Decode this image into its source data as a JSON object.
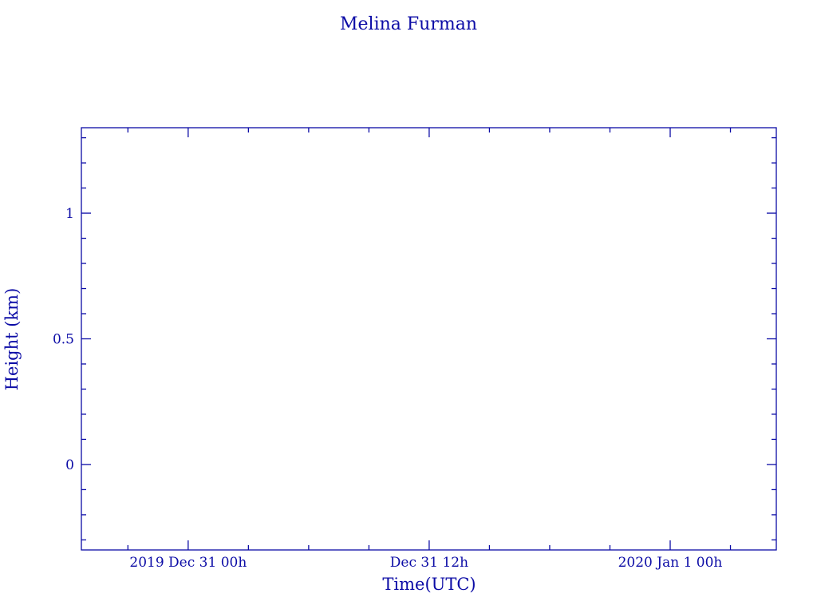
{
  "chart_data": {
    "type": "line",
    "title": "Melina Furman",
    "xlabel": "Time(UTC)",
    "ylabel": "Height (km)",
    "color": "#0c0ca6",
    "xlim": [
      "2019-12-30T18:41",
      "2020-01-01T05:17"
    ],
    "ylim": [
      -0.34,
      1.34
    ],
    "x_major_ticks": [
      {
        "time": "2019-12-31T00:00",
        "label": "2019 Dec 31  00h"
      },
      {
        "time": "2019-12-31T12:00",
        "label": "Dec 31  12h"
      },
      {
        "time": "2020-01-01T00:00",
        "label": "2020 Jan  1  00h"
      }
    ],
    "x_minor_tick_interval_hours": 3,
    "y_major_ticks": [
      {
        "value": 0,
        "label": "0"
      },
      {
        "value": 0.5,
        "label": "0.5"
      },
      {
        "value": 1,
        "label": "1"
      }
    ],
    "y_minor_tick_interval": 0.1,
    "grid": false,
    "series": []
  }
}
